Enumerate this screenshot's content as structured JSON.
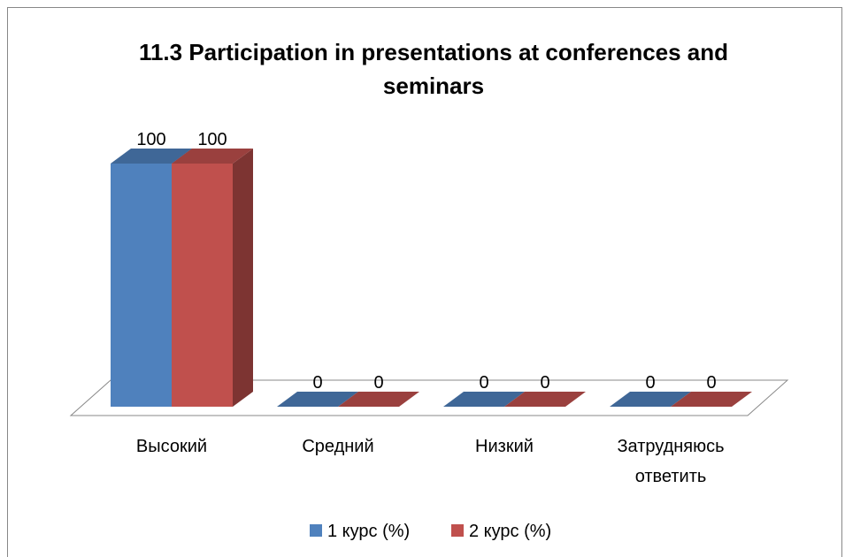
{
  "chart_data": {
    "type": "bar3d",
    "title": "11.3 Participation in presentations at conferences and seminars",
    "categories": [
      "Высокий",
      "Средний",
      "Низкий",
      "Затрудняюсь ответить"
    ],
    "series": [
      {
        "name": "1 курс (%)",
        "color": "#4F81BD",
        "values": [
          100,
          0,
          0,
          0
        ]
      },
      {
        "name": "2 курс (%)",
        "color": "#C0504D",
        "values": [
          100,
          0,
          0,
          0
        ]
      }
    ],
    "legend": "bottom"
  }
}
